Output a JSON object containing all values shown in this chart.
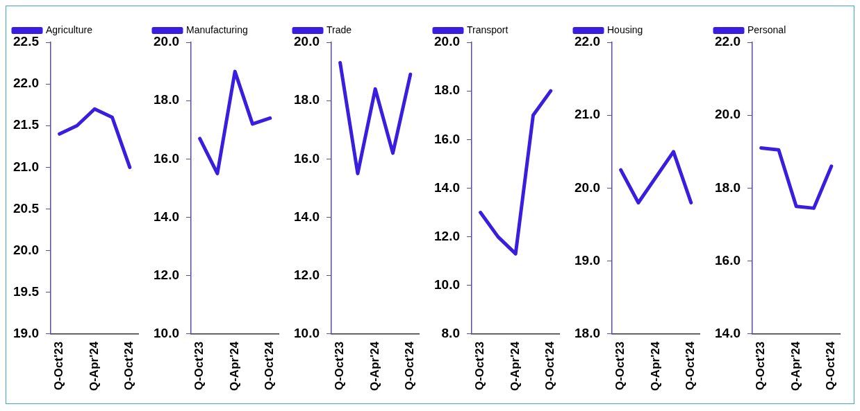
{
  "chart_data": [
    {
      "type": "line",
      "categories": [
        "Q-Oct'23",
        null,
        "Q-Apr'24",
        null,
        "Q-Oct'24"
      ],
      "series": [
        {
          "name": "Agriculture",
          "color": "#3a1ee0",
          "values": [
            21.4,
            21.5,
            21.7,
            21.6,
            21.0
          ]
        }
      ],
      "ylim": [
        19,
        22.5
      ],
      "yticks": [
        {
          "value": 19,
          "label": "19.0"
        },
        19.5,
        {
          "value": 20,
          "label": "20.0"
        },
        20.5,
        {
          "value": 21,
          "label": "21.0"
        },
        21.5,
        {
          "value": 22,
          "label": "22.0"
        },
        22.5
      ],
      "legend": "top",
      "grid": false
    },
    {
      "type": "line",
      "categories": [
        "Q-Oct'23",
        null,
        "Q-Apr'24",
        null,
        "Q-Oct'24"
      ],
      "series": [
        {
          "name": "Manufacturing",
          "color": "#3a1ee0",
          "values": [
            16.7,
            15.5,
            19.0,
            17.2,
            17.4
          ]
        }
      ],
      "ylim": [
        10,
        20
      ],
      "yticks": [
        {
          "value": 10,
          "label": "10.0"
        },
        {
          "value": 12,
          "label": "12.0"
        },
        {
          "value": 14,
          "label": "14.0"
        },
        {
          "value": 16,
          "label": "16.0"
        },
        {
          "value": 18,
          "label": "18.0"
        },
        {
          "value": 20,
          "label": "20.0"
        }
      ],
      "legend": "top",
      "grid": false
    },
    {
      "type": "line",
      "categories": [
        "Q-Oct'23",
        null,
        "Q-Apr'24",
        null,
        "Q-Oct'24"
      ],
      "series": [
        {
          "name": "Trade",
          "color": "#3a1ee0",
          "values": [
            19.3,
            15.5,
            18.4,
            16.2,
            18.9
          ]
        }
      ],
      "ylim": [
        10,
        20
      ],
      "yticks": [
        {
          "value": 10,
          "label": "10.0"
        },
        {
          "value": 12,
          "label": "12.0"
        },
        {
          "value": 14,
          "label": "14.0"
        },
        {
          "value": 16,
          "label": "16.0"
        },
        {
          "value": 18,
          "label": "18.0"
        },
        {
          "value": 20,
          "label": "20.0"
        }
      ],
      "legend": "top",
      "grid": false
    },
    {
      "type": "line",
      "categories": [
        "Q-Oct'23",
        null,
        "Q-Apr'24",
        null,
        "Q-Oct'24"
      ],
      "series": [
        {
          "name": "Transport",
          "color": "#3a1ee0",
          "values": [
            13.0,
            12.0,
            11.3,
            17.0,
            18.0
          ]
        }
      ],
      "ylim": [
        8,
        20
      ],
      "yticks": [
        {
          "value": 8,
          "label": "8.0"
        },
        {
          "value": 10,
          "label": "10.0"
        },
        {
          "value": 12,
          "label": "12.0"
        },
        {
          "value": 14,
          "label": "14.0"
        },
        {
          "value": 16,
          "label": "16.0"
        },
        {
          "value": 18,
          "label": "18.0"
        },
        {
          "value": 20,
          "label": "20.0"
        }
      ],
      "legend": "top",
      "grid": false
    },
    {
      "type": "line",
      "categories": [
        "Q-Oct'23",
        null,
        "Q-Apr'24",
        null,
        "Q-Oct'24"
      ],
      "series": [
        {
          "name": "Housing",
          "color": "#3a1ee0",
          "values": [
            20.25,
            19.8,
            20.15,
            20.5,
            19.8
          ]
        }
      ],
      "ylim": [
        18,
        22
      ],
      "yticks": [
        {
          "value": 18,
          "label": "18.0"
        },
        {
          "value": 19,
          "label": "19.0"
        },
        {
          "value": 20,
          "label": "20.0"
        },
        {
          "value": 21,
          "label": "21.0"
        },
        {
          "value": 22,
          "label": "22.0"
        }
      ],
      "legend": "top",
      "grid": false
    },
    {
      "type": "line",
      "categories": [
        "Q-Oct'23",
        null,
        "Q-Apr'24",
        null,
        "Q-Oct'24"
      ],
      "series": [
        {
          "name": "Personal",
          "color": "#3a1ee0",
          "values": [
            19.1,
            19.05,
            17.5,
            17.45,
            18.6
          ]
        }
      ],
      "ylim": [
        14,
        22
      ],
      "yticks": [
        {
          "value": 14,
          "label": "14.0"
        },
        {
          "value": 16,
          "label": "16.0"
        },
        {
          "value": 18,
          "label": "18.0"
        },
        {
          "value": 20,
          "label": "20.0"
        },
        {
          "value": 22,
          "label": "22.0"
        }
      ],
      "legend": "top",
      "grid": false
    }
  ]
}
